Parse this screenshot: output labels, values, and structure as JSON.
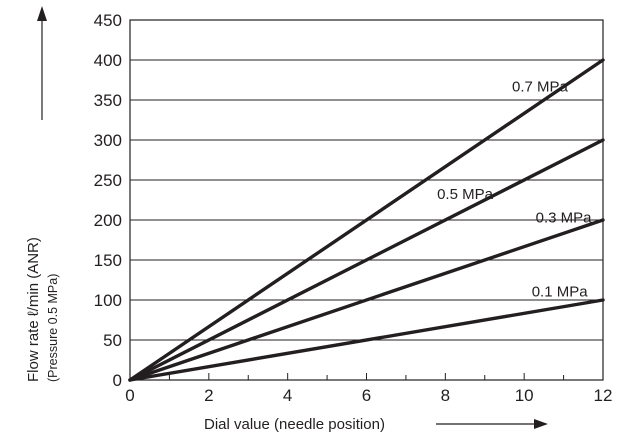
{
  "chart_data": {
    "type": "line",
    "xlabel": "Dial value (needle position)",
    "ylabel": "Flow rate ℓ/min (ANR)",
    "ylabel_sub": "(Pressure 0.5 MPa)",
    "xlim": [
      0,
      12
    ],
    "ylim": [
      0,
      450
    ],
    "x_ticks": [
      0,
      2,
      4,
      6,
      8,
      10,
      12
    ],
    "y_ticks": [
      0,
      50,
      100,
      150,
      200,
      250,
      300,
      350,
      400,
      450
    ],
    "grid": {
      "horizontal": true,
      "vertical": false
    },
    "series": [
      {
        "name": "0.7 MPa",
        "x": [
          0,
          12
        ],
        "y": [
          0,
          400
        ]
      },
      {
        "name": "0.5 MPa",
        "x": [
          0,
          12
        ],
        "y": [
          0,
          300
        ]
      },
      {
        "name": "0.3 MPa",
        "x": [
          0,
          12
        ],
        "y": [
          0,
          200
        ]
      },
      {
        "name": "0.1 MPa",
        "x": [
          0,
          12
        ],
        "y": [
          0,
          100
        ]
      }
    ],
    "line_color": "#231f20"
  }
}
